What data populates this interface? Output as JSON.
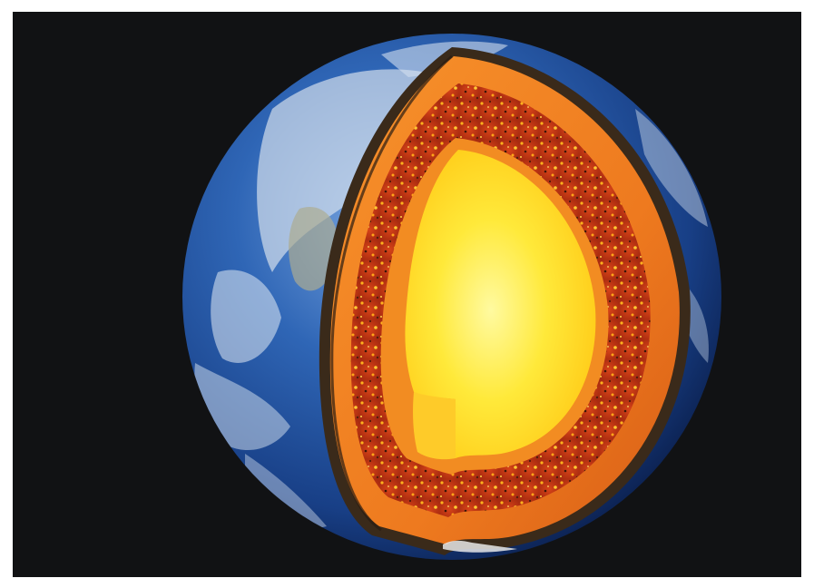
{
  "scene": {
    "subject": "cutaway-globe",
    "colors": {
      "border": "#ffffff",
      "space": "#111214",
      "ocean": "#1f4f9a",
      "crust_edge": "#3a2a1a",
      "mantle": "#e2651b",
      "outer_core_dark": "#9b2a12",
      "outer_core_bright": "#ffb21c",
      "inner_core": "#ffe23a"
    }
  }
}
